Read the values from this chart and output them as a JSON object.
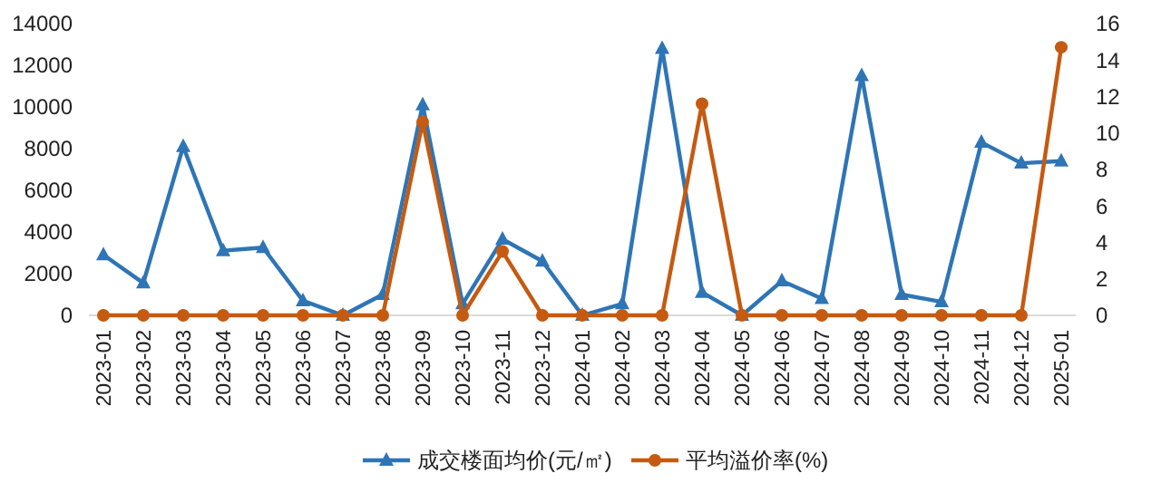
{
  "chart_data": {
    "type": "line",
    "categories": [
      "2023-01",
      "2023-02",
      "2023-03",
      "2023-04",
      "2023-05",
      "2023-06",
      "2023-07",
      "2023-08",
      "2023-09",
      "2023-10",
      "2023-11",
      "2023-12",
      "2024-01",
      "2024-02",
      "2024-03",
      "2024-04",
      "2024-05",
      "2024-06",
      "2024-07",
      "2024-08",
      "2024-09",
      "2024-10",
      "2024-11",
      "2024-12",
      "2025-01"
    ],
    "series": [
      {
        "name": "成交楼面均价(元/㎡)",
        "color": "#2e75b6",
        "marker": "triangle",
        "values": [
          2900,
          1550,
          8100,
          3100,
          3250,
          700,
          0,
          1000,
          10100,
          550,
          3650,
          2600,
          0,
          550,
          12800,
          1100,
          0,
          1650,
          800,
          11500,
          1000,
          650,
          8300,
          7300,
          7400
        ]
      },
      {
        "name": "平均溢价率(%)",
        "color": "#c55a11",
        "marker": "circle",
        "axis": "y2",
        "values": [
          0,
          0,
          0,
          0,
          0,
          0,
          0,
          0,
          10.6,
          0,
          3.5,
          0,
          0,
          0,
          0,
          11.6,
          0,
          0,
          0,
          0,
          0,
          0,
          0,
          0,
          14.7
        ]
      }
    ],
    "ylim": [
      0,
      14000
    ],
    "yticks": [
      0,
      2000,
      4000,
      6000,
      8000,
      10000,
      12000,
      14000
    ],
    "y2lim": [
      0,
      16
    ],
    "y2ticks": [
      0,
      2,
      4,
      6,
      8,
      10,
      12,
      14,
      16
    ],
    "grid": false,
    "legend": "bottom",
    "line_style": "solid"
  }
}
